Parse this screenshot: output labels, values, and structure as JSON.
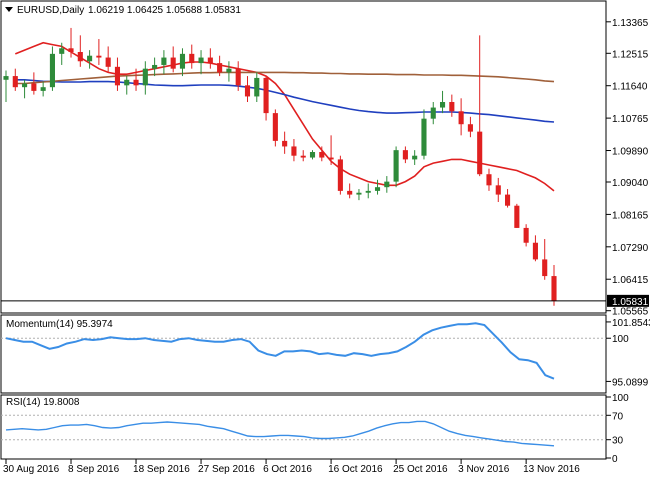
{
  "header": {
    "symbol": "EURUSD,Daily",
    "ohlc": "1.06219 1.06425 1.05688 1.05831"
  },
  "panels": {
    "momentum": {
      "title": "Momentum(14) 95.3974"
    },
    "rsi": {
      "title": "RSI(14) 19.8008"
    }
  },
  "colors": {
    "bull": "#2e8b3a",
    "bear": "#e02020",
    "ma_red": "#e02020",
    "ma_blue": "#1f3fbf",
    "ma_brown": "#a0603a",
    "indicator": "#3a8ee6",
    "grid": "#b0b0b0"
  },
  "chart_data": [
    {
      "type": "candlestick",
      "title": "EURUSD,Daily",
      "ylim": [
        1.0553,
        1.139
      ],
      "y_ticks": [
        "1.13365",
        "1.12515",
        "1.11640",
        "1.10765",
        "1.09890",
        "1.09040",
        "1.08165",
        "1.07290",
        "1.06415",
        "1.05565"
      ],
      "current_price_label": "1.05831",
      "x_ticks": [
        "30 Aug 2016",
        "8 Sep 2016",
        "18 Sep 2016",
        "27 Sep 2016",
        "6 Oct 2016",
        "16 Oct 2016",
        "25 Oct 2016",
        "3 Nov 2016",
        "13 Nov 2016"
      ],
      "x_tick_index": [
        0,
        7,
        14,
        21,
        28,
        35,
        42,
        49,
        56
      ],
      "candles": [
        [
          1.118,
          1.1205,
          1.112,
          1.119
        ],
        [
          1.119,
          1.121,
          1.115,
          1.116
        ],
        [
          1.116,
          1.118,
          1.113,
          1.117
        ],
        [
          1.117,
          1.12,
          1.114,
          1.115
        ],
        [
          1.115,
          1.1175,
          1.1135,
          1.116
        ],
        [
          1.116,
          1.127,
          1.115,
          1.125
        ],
        [
          1.125,
          1.128,
          1.122,
          1.1265
        ],
        [
          1.1265,
          1.132,
          1.124,
          1.1255
        ],
        [
          1.1255,
          1.13,
          1.1215,
          1.123
        ],
        [
          1.123,
          1.126,
          1.121,
          1.1245
        ],
        [
          1.1245,
          1.129,
          1.122,
          1.124
        ],
        [
          1.124,
          1.127,
          1.12,
          1.1215
        ],
        [
          1.1215,
          1.124,
          1.115,
          1.1165
        ],
        [
          1.1165,
          1.119,
          1.114,
          1.118
        ],
        [
          1.118,
          1.121,
          1.115,
          1.1165
        ],
        [
          1.1165,
          1.123,
          1.114,
          1.121
        ],
        [
          1.121,
          1.124,
          1.119,
          1.122
        ],
        [
          1.122,
          1.126,
          1.1195,
          1.124
        ],
        [
          1.124,
          1.127,
          1.12,
          1.121
        ],
        [
          1.121,
          1.1265,
          1.119,
          1.125
        ],
        [
          1.125,
          1.1275,
          1.121,
          1.1225
        ],
        [
          1.1225,
          1.126,
          1.1195,
          1.124
        ],
        [
          1.124,
          1.1265,
          1.121,
          1.1225
        ],
        [
          1.1225,
          1.1245,
          1.119,
          1.12
        ],
        [
          1.12,
          1.123,
          1.1175,
          1.121
        ],
        [
          1.121,
          1.123,
          1.115,
          1.1165
        ],
        [
          1.1165,
          1.119,
          1.112,
          1.1135
        ],
        [
          1.1135,
          1.12,
          1.112,
          1.1185
        ],
        [
          1.1185,
          1.119,
          1.107,
          1.109
        ],
        [
          1.109,
          1.11,
          1.1,
          1.1015
        ],
        [
          1.1015,
          1.104,
          1.098,
          1.1
        ],
        [
          1.1,
          1.102,
          1.096,
          1.0975
        ],
        [
          1.0975,
          1.099,
          1.096,
          1.097
        ],
        [
          1.097,
          1.099,
          1.0965,
          1.0985
        ],
        [
          1.0985,
          1.1,
          1.096,
          1.097
        ],
        [
          1.097,
          1.103,
          1.095,
          1.0965
        ],
        [
          1.0965,
          1.0975,
          1.087,
          1.088
        ],
        [
          1.088,
          1.09,
          1.086,
          1.087
        ],
        [
          1.087,
          1.0885,
          1.0855,
          1.0875
        ],
        [
          1.0875,
          1.09,
          1.086,
          1.088
        ],
        [
          1.088,
          1.091,
          1.087,
          1.089
        ],
        [
          1.089,
          1.092,
          1.0875,
          1.0905
        ],
        [
          1.0905,
          1.1,
          1.089,
          1.099
        ],
        [
          1.099,
          1.1,
          1.0955,
          1.0965
        ],
        [
          1.0965,
          1.099,
          1.095,
          1.0975
        ],
        [
          1.0975,
          1.11,
          1.0965,
          1.1075
        ],
        [
          1.1075,
          1.112,
          1.106,
          1.1105
        ],
        [
          1.1105,
          1.115,
          1.109,
          1.112
        ],
        [
          1.112,
          1.114,
          1.108,
          1.1095
        ],
        [
          1.1095,
          1.113,
          1.103,
          1.106
        ],
        [
          1.106,
          1.108,
          1.1025,
          1.104
        ],
        [
          1.104,
          1.13,
          1.092,
          1.0925
        ],
        [
          1.0925,
          1.094,
          1.088,
          1.0895
        ],
        [
          1.0895,
          1.0915,
          1.085,
          1.087
        ],
        [
          1.087,
          1.0885,
          1.0835,
          1.084
        ],
        [
          1.084,
          1.0845,
          1.078,
          1.078
        ],
        [
          1.078,
          1.079,
          1.073,
          1.074
        ],
        [
          1.074,
          1.076,
          1.069,
          1.0695
        ],
        [
          1.0695,
          1.075,
          1.064,
          1.065
        ],
        [
          1.065,
          1.068,
          1.057,
          1.0583
        ]
      ],
      "series": [
        {
          "color": "#e02020",
          "values": [
            1.125,
            1.126,
            1.127,
            1.128,
            1.1275,
            1.127,
            1.1255,
            1.124,
            1.1225,
            1.121,
            1.12,
            1.1195,
            1.1195,
            1.12,
            1.1205,
            1.121,
            1.1215,
            1.122,
            1.1225,
            1.1228,
            1.1228,
            1.1225,
            1.122,
            1.1215,
            1.121,
            1.1205,
            1.12,
            1.119,
            1.117,
            1.114,
            1.11,
            1.106,
            1.102,
            1.099,
            1.096,
            1.094,
            1.0925,
            1.0915,
            1.0905,
            1.09,
            1.0895,
            1.0895,
            1.0905,
            1.092,
            1.0945,
            1.0955,
            1.096,
            1.0965,
            1.0965,
            1.096,
            1.0955,
            1.095,
            1.0945,
            1.094,
            1.0935,
            1.0925,
            1.0915,
            1.09,
            1.088
          ]
        },
        {
          "color": "#1f3fbf",
          "values": [
            1.118,
            1.118,
            1.1178,
            1.1176,
            1.1175,
            1.1174,
            1.1174,
            1.1174,
            1.1175,
            1.1175,
            1.1175,
            1.1174,
            1.1172,
            1.117,
            1.1168,
            1.1166,
            1.1165,
            1.1164,
            1.1164,
            1.1165,
            1.1166,
            1.1166,
            1.1166,
            1.1165,
            1.1163,
            1.116,
            1.1157,
            1.1152,
            1.1146,
            1.114,
            1.1133,
            1.1127,
            1.1121,
            1.1116,
            1.1111,
            1.1106,
            1.1101,
            1.1097,
            1.1094,
            1.1092,
            1.109,
            1.109,
            1.1091,
            1.1092,
            1.1093,
            1.1093,
            1.1093,
            1.1093,
            1.1092,
            1.109,
            1.1088,
            1.1086,
            1.1083,
            1.108,
            1.1077,
            1.1074,
            1.1071,
            1.1068,
            1.1066
          ]
        },
        {
          "color": "#a0603a",
          "values": [
            1.117,
            1.117,
            1.1172,
            1.1174,
            1.1176,
            1.1178,
            1.118,
            1.1182,
            1.1184,
            1.1186,
            1.1188,
            1.119,
            1.1191,
            1.1192,
            1.1193,
            1.1194,
            1.1195,
            1.1196,
            1.1197,
            1.1198,
            1.1199,
            1.1199,
            1.12,
            1.12,
            1.12,
            1.12,
            1.12,
            1.12,
            1.12,
            1.12,
            1.1199,
            1.1199,
            1.1198,
            1.1198,
            1.1197,
            1.1197,
            1.1196,
            1.1196,
            1.1195,
            1.1195,
            1.1195,
            1.1194,
            1.1194,
            1.1194,
            1.1193,
            1.1193,
            1.1193,
            1.1192,
            1.1192,
            1.1191,
            1.119,
            1.1189,
            1.1188,
            1.1186,
            1.1184,
            1.1182,
            1.118,
            1.1177,
            1.1175
          ]
        }
      ]
    },
    {
      "type": "line",
      "title": "Momentum(14) 95.3974",
      "ylim": [
        94.0,
        102.3
      ],
      "y_ticks": [
        "101.8543",
        "100",
        "95.0899"
      ],
      "y_tick_values": [
        101.8543,
        100,
        95.0899
      ],
      "values": [
        100.0,
        99.8,
        99.6,
        99.6,
        99.2,
        98.8,
        99.0,
        99.4,
        99.6,
        99.9,
        99.8,
        99.9,
        100.1,
        100.0,
        99.9,
        99.9,
        100.0,
        99.8,
        99.7,
        99.6,
        99.9,
        100.0,
        99.8,
        99.7,
        99.6,
        99.6,
        99.8,
        99.9,
        99.6,
        98.6,
        98.2,
        98.0,
        98.5,
        98.5,
        98.6,
        98.5,
        98.2,
        98.3,
        98.1,
        98.0,
        98.3,
        98.2,
        98.0,
        98.2,
        98.3,
        98.5,
        99.0,
        99.6,
        100.4,
        100.9,
        101.2,
        101.4,
        101.6,
        101.6,
        101.7,
        101.5,
        100.5,
        99.5,
        98.4,
        97.6,
        97.5,
        97.2,
        95.8,
        95.4
      ]
    },
    {
      "type": "line",
      "title": "RSI(14) 19.8008",
      "ylim": [
        0,
        100
      ],
      "y_ticks": [
        "100",
        "70",
        "30",
        "0"
      ],
      "y_tick_values": [
        100,
        70,
        30,
        0
      ],
      "values": [
        46,
        47,
        48,
        47,
        46,
        47,
        50,
        53,
        54,
        54,
        55,
        53,
        50,
        49,
        50,
        53,
        55,
        57,
        57,
        58,
        59,
        58,
        57,
        56,
        55,
        52,
        50,
        48,
        44,
        40,
        36,
        35,
        35,
        36,
        37,
        37,
        36,
        35,
        33,
        32,
        32,
        33,
        34,
        36,
        40,
        44,
        49,
        53,
        56,
        58,
        58,
        60,
        60,
        56,
        50,
        44,
        40,
        37,
        35,
        33,
        31,
        29,
        27,
        26,
        24,
        23,
        22,
        21,
        20
      ]
    }
  ]
}
